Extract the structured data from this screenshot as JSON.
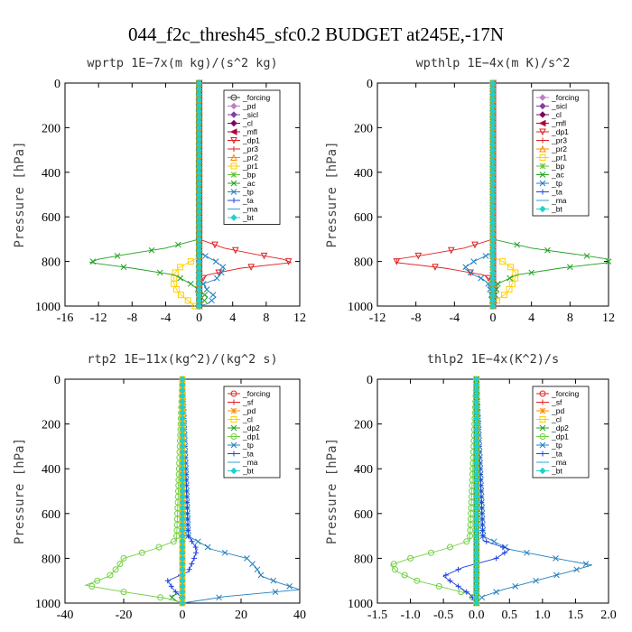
{
  "figure_title": "044_f2c_thresh45_sfc0.2  BUDGET at245E,-17N",
  "chart_data": [
    {
      "type": "line",
      "title": "wprtp   1E−7x(m kg)/(s^2 kg)",
      "ylabel": "Pressure [hPa]",
      "xlim": [
        -16,
        12
      ],
      "ylim": [
        1000,
        0
      ],
      "xticks": [
        "-16",
        "-12",
        "-8",
        "-4",
        "0",
        "4",
        "8",
        "12"
      ],
      "yticks": [
        "0",
        "200",
        "400",
        "600",
        "800",
        "1000"
      ],
      "legend_position": "top-right",
      "series": [
        {
          "name": "_forcing",
          "color": "#444444",
          "marker": "o",
          "y": [
            0,
            700,
            900,
            1000
          ],
          "x": [
            0,
            0,
            0,
            0
          ]
        },
        {
          "name": "_pd",
          "color": "#c080c0",
          "marker": "d",
          "y": [
            0,
            1000
          ],
          "x": [
            0,
            0
          ]
        },
        {
          "name": "_sicl",
          "color": "#8040a0",
          "marker": "d",
          "y": [
            0,
            1000
          ],
          "x": [
            0,
            0
          ]
        },
        {
          "name": "_cl",
          "color": "#800060",
          "marker": "d",
          "y": [
            0,
            1000
          ],
          "x": [
            0,
            0
          ]
        },
        {
          "name": "_mfl",
          "color": "#b00040",
          "marker": "<",
          "y": [
            0,
            1000
          ],
          "x": [
            0,
            0
          ]
        },
        {
          "name": "_dp1",
          "color": "#e02020",
          "marker": "v",
          "y": [
            0,
            700,
            740,
            770,
            790,
            805,
            830,
            860,
            880,
            900,
            1000
          ],
          "x": [
            0,
            0,
            3,
            7,
            10,
            11,
            5,
            1,
            0.3,
            0,
            0
          ]
        },
        {
          "name": "_pr3",
          "color": "#e02020",
          "marker": "+",
          "y": [
            0,
            1000
          ],
          "x": [
            0,
            0
          ]
        },
        {
          "name": "_pr2",
          "color": "#ff8800",
          "marker": "^",
          "y": [
            0,
            1000
          ],
          "x": [
            0,
            0
          ]
        },
        {
          "name": "_pr1",
          "color": "#ffd000",
          "marker": "s",
          "y": [
            0,
            780,
            800,
            830,
            860,
            900,
            940,
            970,
            1000
          ],
          "x": [
            0,
            0,
            -1,
            -2.5,
            -3,
            -3,
            -2.5,
            -1.5,
            -0.5
          ]
        },
        {
          "name": "_bp",
          "color": "#60c030",
          "marker": "*",
          "y": [
            0,
            1000
          ],
          "x": [
            0,
            0
          ]
        },
        {
          "name": "_ac",
          "color": "#20a020",
          "marker": "x",
          "y": [
            0,
            700,
            740,
            770,
            790,
            805,
            830,
            860,
            900,
            960,
            1000
          ],
          "x": [
            0,
            0,
            -4,
            -9,
            -12,
            -13,
            -8,
            -3,
            -1,
            1,
            0
          ]
        },
        {
          "name": "_tp",
          "color": "#2080c0",
          "marker": "x",
          "y": [
            0,
            760,
            800,
            830,
            860,
            880,
            900,
            930,
            960,
            990,
            1000
          ],
          "x": [
            0,
            0,
            2,
            3,
            2.5,
            2,
            0.5,
            1,
            2,
            1,
            0
          ]
        },
        {
          "name": "_ta",
          "color": "#2040e0",
          "marker": "+",
          "y": [
            0,
            1000
          ],
          "x": [
            0,
            0
          ]
        },
        {
          "name": "_ma",
          "color": "#30a0d0",
          "marker": "",
          "y": [
            0,
            1000
          ],
          "x": [
            0,
            0
          ]
        },
        {
          "name": "_bt",
          "color": "#20d0d0",
          "marker": "d",
          "y": [
            0,
            1000
          ],
          "x": [
            0,
            0
          ]
        }
      ]
    },
    {
      "type": "line",
      "title": "wpthlp   1E−4x(m K)/s^2",
      "ylabel": "Pressure [hPa]",
      "xlim": [
        -12,
        12
      ],
      "ylim": [
        1000,
        0
      ],
      "xticks": [
        "-12",
        "-8",
        "-4",
        "0",
        "4",
        "8",
        "12"
      ],
      "yticks": [
        "0",
        "200",
        "400",
        "600",
        "800",
        "1000"
      ],
      "legend_position": "top-right",
      "series": [
        {
          "name": "_forcing",
          "color": "#c080c0",
          "marker": "d",
          "y": [
            0,
            1000
          ],
          "x": [
            0,
            0
          ]
        },
        {
          "name": "_sicl",
          "color": "#8040a0",
          "marker": "d",
          "y": [
            0,
            1000
          ],
          "x": [
            0,
            0
          ]
        },
        {
          "name": "_cl",
          "color": "#800060",
          "marker": "d",
          "y": [
            0,
            1000
          ],
          "x": [
            0,
            0
          ]
        },
        {
          "name": "_mfl",
          "color": "#b00040",
          "marker": "<",
          "y": [
            0,
            1000
          ],
          "x": [
            0,
            0
          ]
        },
        {
          "name": "_dp1",
          "color": "#e02020",
          "marker": "v",
          "y": [
            0,
            700,
            740,
            770,
            790,
            805,
            830,
            860,
            880,
            900,
            1000
          ],
          "x": [
            0,
            0,
            -3,
            -7,
            -10,
            -10,
            -5,
            -1,
            -0.3,
            0,
            0
          ]
        },
        {
          "name": "_pr3",
          "color": "#e02020",
          "marker": "+",
          "y": [
            0,
            1000
          ],
          "x": [
            0,
            0
          ]
        },
        {
          "name": "_pr2",
          "color": "#ff8800",
          "marker": "^",
          "y": [
            0,
            1000
          ],
          "x": [
            0,
            0
          ]
        },
        {
          "name": "_pr1",
          "color": "#ffd000",
          "marker": "s",
          "y": [
            0,
            780,
            800,
            830,
            860,
            900,
            940,
            970,
            1000
          ],
          "x": [
            0,
            0,
            1,
            2,
            2.5,
            2,
            1.5,
            0.5,
            0
          ]
        },
        {
          "name": "_bp",
          "color": "#60c030",
          "marker": "*",
          "y": [
            0,
            1000
          ],
          "x": [
            0,
            0
          ]
        },
        {
          "name": "_ac",
          "color": "#20a020",
          "marker": "x",
          "y": [
            0,
            700,
            740,
            770,
            790,
            805,
            830,
            860,
            900,
            1000
          ],
          "x": [
            0,
            0,
            4,
            9,
            12,
            12,
            7,
            2.5,
            0.5,
            0
          ]
        },
        {
          "name": "_tp",
          "color": "#2080c0",
          "marker": "x",
          "y": [
            0,
            760,
            800,
            830,
            860,
            880,
            900,
            940,
            1000
          ],
          "x": [
            0,
            0,
            -2,
            -3,
            -2,
            -1,
            -0.5,
            -0.2,
            0
          ]
        },
        {
          "name": "_ta",
          "color": "#2040e0",
          "marker": "+",
          "y": [
            0,
            1000
          ],
          "x": [
            0,
            0
          ]
        },
        {
          "name": "_ma",
          "color": "#30a0d0",
          "marker": "",
          "y": [
            0,
            1000
          ],
          "x": [
            0,
            0
          ]
        },
        {
          "name": "_bt",
          "color": "#20d0d0",
          "marker": "d",
          "y": [
            0,
            1000
          ],
          "x": [
            0,
            0
          ]
        }
      ]
    },
    {
      "type": "line",
      "title": "rtp2   1E−11x(kg^2)/(kg^2 s)",
      "ylabel": "Pressure [hPa]",
      "xlim": [
        -40,
        40
      ],
      "ylim": [
        1000,
        0
      ],
      "xticks": [
        "-40",
        "-20",
        "0",
        "20",
        "40"
      ],
      "yticks": [
        "0",
        "200",
        "400",
        "600",
        "800",
        "1000"
      ],
      "legend_position": "top-right",
      "series": [
        {
          "name": "_forcing",
          "color": "#e02020",
          "marker": "o",
          "y": [
            0,
            1000
          ],
          "x": [
            0,
            0
          ]
        },
        {
          "name": "_sf",
          "color": "#e02020",
          "marker": "+",
          "y": [
            0,
            1000
          ],
          "x": [
            0,
            0
          ]
        },
        {
          "name": "_pd",
          "color": "#ff8800",
          "marker": "*",
          "y": [
            0,
            1000
          ],
          "x": [
            0,
            0
          ]
        },
        {
          "name": "_cl",
          "color": "#ffd000",
          "marker": "s",
          "y": [
            0,
            1000
          ],
          "x": [
            0,
            0
          ]
        },
        {
          "name": "_dp2",
          "color": "#20a020",
          "marker": "x",
          "y": [
            0,
            950,
            970,
            990,
            1000
          ],
          "x": [
            0,
            0,
            -4,
            -2,
            0
          ]
        },
        {
          "name": "_dp1",
          "color": "#70d040",
          "marker": "o",
          "y": [
            0,
            720,
            760,
            800,
            840,
            880,
            920,
            950,
            980,
            1000
          ],
          "x": [
            0,
            -2,
            -10,
            -20,
            -22,
            -25,
            -33,
            -20,
            -5,
            0
          ]
        },
        {
          "name": "_tp",
          "color": "#2080c0",
          "marker": "x",
          "y": [
            0,
            700,
            760,
            800,
            840,
            880,
            910,
            940,
            970,
            1000
          ],
          "x": [
            0,
            2,
            10,
            22,
            25,
            27,
            33,
            40,
            15,
            0
          ]
        },
        {
          "name": "_ta",
          "color": "#2040e0",
          "marker": "+",
          "y": [
            0,
            700,
            760,
            800,
            860,
            900,
            940,
            980,
            1000
          ],
          "x": [
            0,
            2,
            5,
            4,
            2,
            -5,
            -3,
            0,
            0
          ]
        },
        {
          "name": "_ma",
          "color": "#30a0d0",
          "marker": "",
          "y": [
            0,
            1000
          ],
          "x": [
            0,
            0
          ]
        },
        {
          "name": "_bt",
          "color": "#20d0d0",
          "marker": "d",
          "y": [
            0,
            1000
          ],
          "x": [
            0,
            0
          ]
        }
      ]
    },
    {
      "type": "line",
      "title": "thlp2   1E−4x(K^2)/s",
      "ylabel": "Pressure [hPa]",
      "xlim": [
        -1.5,
        2.0
      ],
      "ylim": [
        1000,
        0
      ],
      "xticks": [
        "-1.5",
        "-1.0",
        "-0.5",
        "0.0",
        "0.5",
        "1.0",
        "1.5",
        "2.0"
      ],
      "yticks": [
        "0",
        "200",
        "400",
        "600",
        "800",
        "1000"
      ],
      "legend_position": "top-right",
      "series": [
        {
          "name": "_forcing",
          "color": "#e02020",
          "marker": "o",
          "y": [
            0,
            1000
          ],
          "x": [
            0,
            0
          ]
        },
        {
          "name": "_sf",
          "color": "#e02020",
          "marker": "+",
          "y": [
            0,
            1000
          ],
          "x": [
            0,
            0
          ]
        },
        {
          "name": "_pd",
          "color": "#ff8800",
          "marker": "*",
          "y": [
            0,
            1000
          ],
          "x": [
            0,
            0
          ]
        },
        {
          "name": "_cl",
          "color": "#ffd000",
          "marker": "s",
          "y": [
            0,
            1000
          ],
          "x": [
            0,
            0
          ]
        },
        {
          "name": "_dp2",
          "color": "#20a020",
          "marker": "x",
          "y": [
            0,
            1000
          ],
          "x": [
            0,
            0
          ]
        },
        {
          "name": "_dp1",
          "color": "#70d040",
          "marker": "o",
          "y": [
            0,
            720,
            760,
            800,
            830,
            860,
            900,
            930,
            960,
            1000
          ],
          "x": [
            0,
            -0.1,
            -0.5,
            -1.0,
            -1.3,
            -1.2,
            -0.9,
            -0.5,
            -0.1,
            0
          ]
        },
        {
          "name": "_tp",
          "color": "#2080c0",
          "marker": "x",
          "y": [
            0,
            700,
            760,
            800,
            830,
            860,
            900,
            940,
            970,
            1000
          ],
          "x": [
            0,
            0.1,
            0.5,
            1.2,
            1.75,
            1.4,
            0.9,
            0.4,
            0.1,
            0
          ]
        },
        {
          "name": "_ta",
          "color": "#2040e0",
          "marker": "+",
          "y": [
            0,
            720,
            760,
            800,
            840,
            880,
            920,
            960,
            1000
          ],
          "x": [
            0,
            0.1,
            0.5,
            0.3,
            -0.2,
            -0.5,
            -0.3,
            -0.1,
            0
          ]
        },
        {
          "name": "_ma",
          "color": "#30a0d0",
          "marker": "",
          "y": [
            0,
            1000
          ],
          "x": [
            0,
            0
          ]
        },
        {
          "name": "_bt",
          "color": "#20d0d0",
          "marker": "d",
          "y": [
            0,
            1000
          ],
          "x": [
            0,
            0
          ]
        }
      ]
    }
  ]
}
